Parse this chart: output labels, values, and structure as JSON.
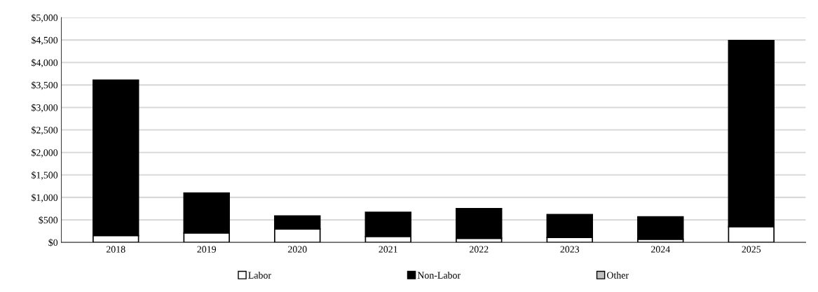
{
  "chart_data": {
    "type": "bar",
    "stacked": true,
    "categories": [
      "2018",
      "2019",
      "2020",
      "2021",
      "2022",
      "2023",
      "2024",
      "2025"
    ],
    "series": [
      {
        "name": "Labor",
        "color": "#ffffff",
        "values": [
          150,
          210,
          300,
          130,
          90,
          110,
          70,
          350
        ]
      },
      {
        "name": "Non-Labor",
        "color": "#000000",
        "values": [
          3460,
          890,
          290,
          540,
          660,
          510,
          500,
          4140
        ]
      },
      {
        "name": "Other",
        "color": "#c0c0c0",
        "values": [
          0,
          0,
          0,
          0,
          0,
          0,
          0,
          0
        ]
      }
    ],
    "ylim": [
      0,
      5000
    ],
    "yticks": [
      {
        "value": 0,
        "label": "$0"
      },
      {
        "value": 500,
        "label": "$500"
      },
      {
        "value": 1000,
        "label": "$1,000"
      },
      {
        "value": 1500,
        "label": "$1,500"
      },
      {
        "value": 2000,
        "label": "$2,000"
      },
      {
        "value": 2500,
        "label": "$2,500"
      },
      {
        "value": 3000,
        "label": "$3,000"
      },
      {
        "value": 3500,
        "label": "$3,500"
      },
      {
        "value": 4000,
        "label": "$4,000"
      },
      {
        "value": 4500,
        "label": "$4,500"
      },
      {
        "value": 5000,
        "label": "$5,000"
      }
    ],
    "grid": "y",
    "legend": "bottom"
  }
}
